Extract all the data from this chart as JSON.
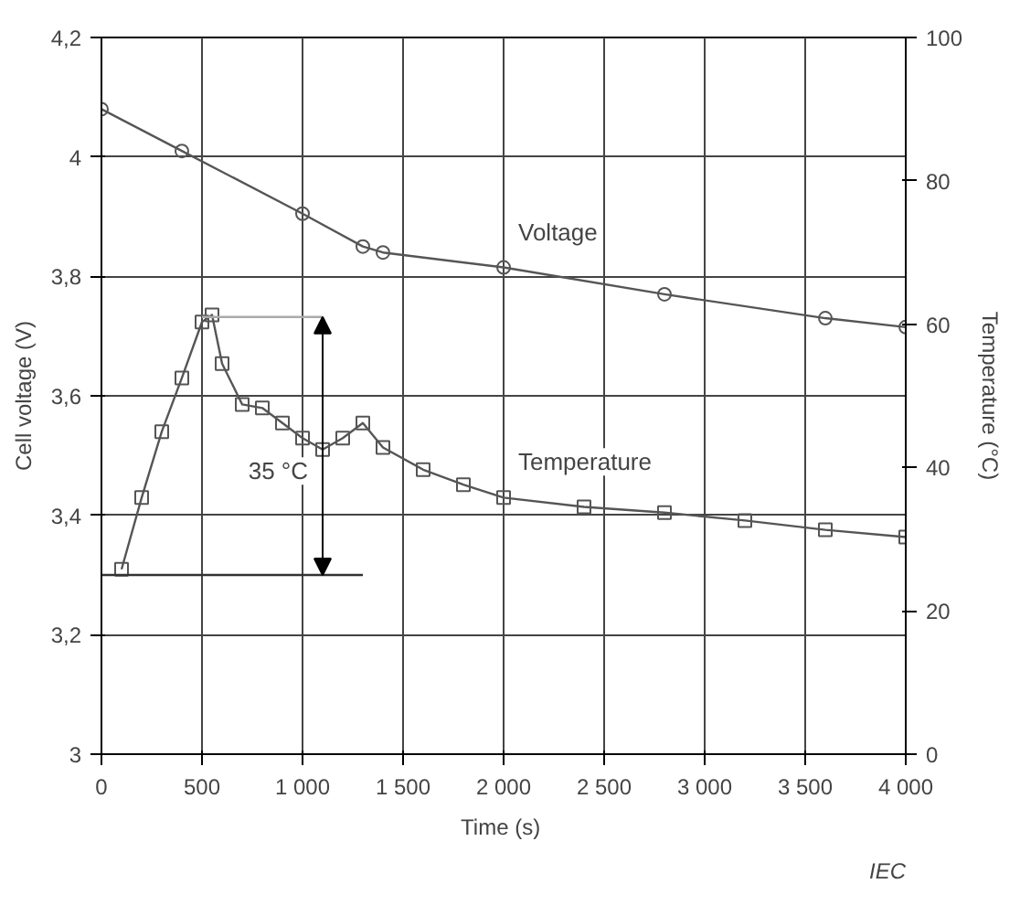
{
  "chart_data": {
    "type": "line",
    "xlabel": "Time  (s)",
    "ylabel": "Cell voltage (V)",
    "y2label": "Temperature (°C)",
    "xlim": [
      0,
      4000
    ],
    "xticks": [
      0,
      {
        "value": 500,
        "label": "500"
      },
      {
        "value": 1000,
        "label": "1 000"
      },
      {
        "value": 1500,
        "label": "1 500"
      },
      {
        "value": 2000,
        "label": "2 000"
      },
      {
        "value": 2500,
        "label": "2 500"
      },
      {
        "value": 3000,
        "label": "3 000"
      },
      {
        "value": 3500,
        "label": "3 500"
      },
      {
        "value": 4000,
        "label": "4 000"
      }
    ],
    "ylim": [
      3,
      4.2
    ],
    "yticks": [
      3,
      {
        "value": 3.2,
        "label": "3,2"
      },
      {
        "value": 3.4,
        "label": "3,4"
      },
      {
        "value": 3.6,
        "label": "3,6"
      },
      {
        "value": 3.8,
        "label": "3,8"
      },
      4,
      {
        "value": 4.2,
        "label": "4,2"
      }
    ],
    "y2lim": [
      0,
      100
    ],
    "y2ticks": [
      0,
      20,
      40,
      60,
      80,
      100
    ],
    "grid": true,
    "series": [
      {
        "name": "Voltage",
        "color": "#555555",
        "marker": "circle",
        "x": [
          0,
          400,
          1000,
          1300,
          1400,
          2000,
          2800,
          3600,
          4000
        ],
        "values": [
          4.08,
          4.01,
          3.905,
          3.85,
          3.84,
          3.815,
          3.77,
          3.73,
          3.715
        ]
      },
      {
        "name": "Temperature",
        "color": "#555555",
        "marker": "square",
        "axis": "y2",
        "x": [
          100,
          200,
          300,
          400,
          500,
          550,
          600,
          700,
          800,
          900,
          1000,
          1100,
          1200,
          1300,
          1400,
          1600,
          1800,
          2000,
          2400,
          2800,
          3200,
          3600,
          4000
        ],
        "values": [
          25.8,
          35.8,
          45,
          52.5,
          60.3,
          61.3,
          54.5,
          48.8,
          48.3,
          46.2,
          44.1,
          42.5,
          44.1,
          46.2,
          42.8,
          39.7,
          37.6,
          35.8,
          34.5,
          33.7,
          32.6,
          31.3,
          30.3
        ]
      },
      {
        "color": "#333333",
        "marker": "none",
        "axis": "y2",
        "x": [
          0,
          1300
        ],
        "values": [
          25,
          25
        ]
      },
      {
        "color": "#aaaaaa",
        "marker": "none",
        "axis": "y2",
        "x": [
          500,
          1100
        ],
        "values": [
          61,
          61
        ]
      }
    ],
    "annotations": [
      "35 °C",
      "IEC"
    ]
  }
}
